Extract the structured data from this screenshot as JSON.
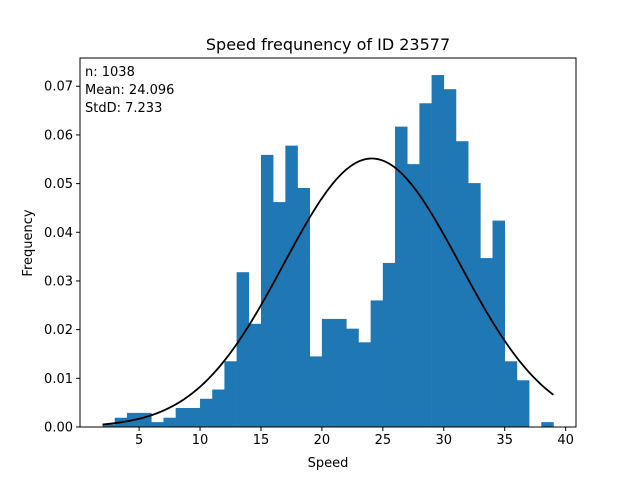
{
  "chart_data": {
    "type": "bar",
    "title": "Speed frequnency of ID 23577",
    "xlabel": "Speed",
    "ylabel": "Frequency",
    "xlim": [
      0.15,
      40.85
    ],
    "ylim": [
      0,
      0.0758
    ],
    "xticks": [
      5,
      10,
      15,
      20,
      25,
      30,
      35,
      40
    ],
    "yticks": [
      0.0,
      0.01,
      0.02,
      0.03,
      0.04,
      0.05,
      0.06,
      0.07
    ],
    "ytick_labels": [
      "0.00",
      "0.01",
      "0.02",
      "0.03",
      "0.04",
      "0.05",
      "0.06",
      "0.07"
    ],
    "bin_edges": [
      2,
      3,
      4,
      5,
      6,
      7,
      8,
      9,
      10,
      11,
      12,
      13,
      14,
      15,
      16,
      17,
      18,
      19,
      20,
      21,
      22,
      23,
      24,
      25,
      26,
      27,
      28,
      29,
      30,
      31,
      32,
      33,
      34,
      35,
      36,
      37,
      38,
      39,
      40
    ],
    "values": [
      0.0005,
      0.0019,
      0.0029,
      0.0029,
      0.001,
      0.0019,
      0.0039,
      0.0039,
      0.0058,
      0.0077,
      0.0135,
      0.0318,
      0.0212,
      0.0559,
      0.0462,
      0.0578,
      0.0491,
      0.0145,
      0.0222,
      0.0222,
      0.0202,
      0.0174,
      0.026,
      0.0337,
      0.0617,
      0.054,
      0.0665,
      0.0723,
      0.0694,
      0.0587,
      0.0501,
      0.0347,
      0.0424,
      0.0135,
      0.0096,
      0,
      0.001,
      0
    ],
    "bar_color": "#1f77b4",
    "curve": {
      "type": "normal-pdf",
      "mean": 24.096,
      "std": 7.233,
      "x_range": [
        2,
        39
      ],
      "color": "#000000"
    },
    "grid": false
  },
  "stats": {
    "n": "n: 1038",
    "mean": "Mean: 24.096",
    "std": "StdD: 7.233"
  }
}
